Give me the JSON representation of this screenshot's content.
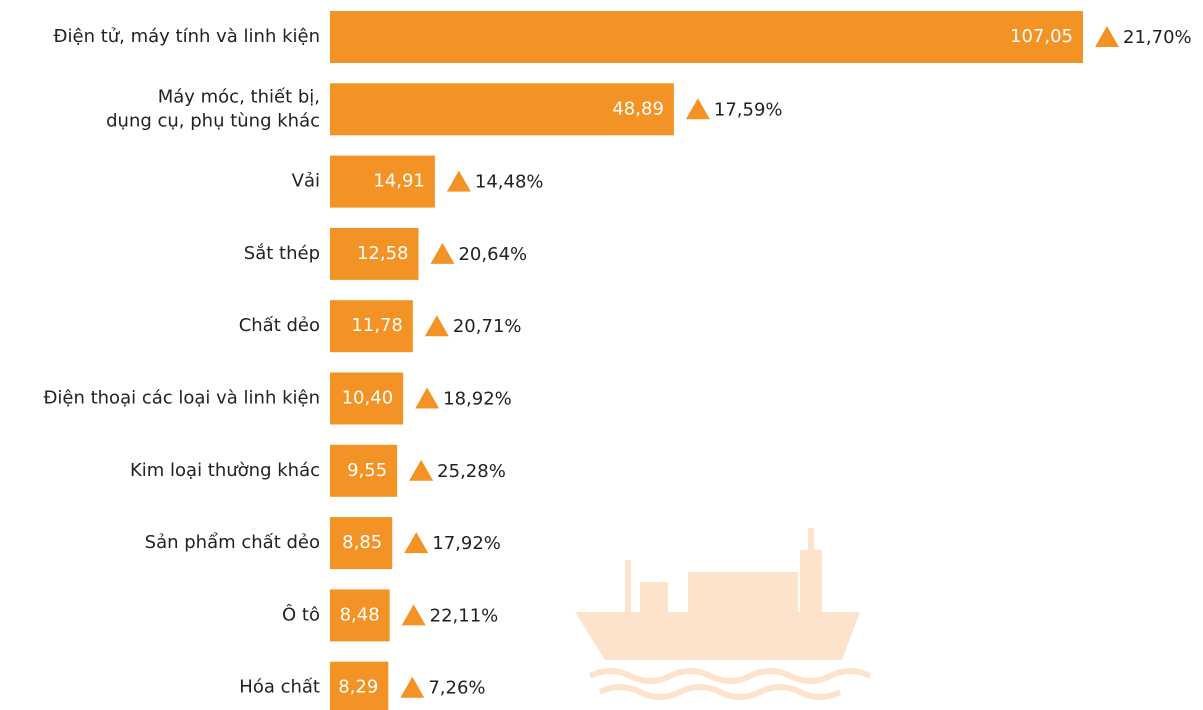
{
  "chart_data": {
    "type": "bar",
    "orientation": "horizontal",
    "color": "#f39325",
    "categories": [
      "Điện tử, máy tính và linh kiện",
      "Máy móc, thiết bị,\ndụng cụ, phụ tùng khác",
      "Vải",
      "Sắt thép",
      "Chất dẻo",
      "Điện thoại các loại và linh kiện",
      "Kim loại thường khác",
      "Sản phẩm chất dẻo",
      "Ô tô",
      "Hóa chất"
    ],
    "values": [
      107.05,
      48.89,
      14.91,
      12.58,
      11.78,
      10.4,
      9.55,
      8.85,
      8.48,
      8.29
    ],
    "value_labels": [
      "107,05",
      "48,89",
      "14,91",
      "12,58",
      "11,78",
      "10,40",
      "9,55",
      "8,85",
      "8,48",
      "8,29"
    ],
    "changes": [
      21.7,
      17.59,
      14.48,
      20.64,
      20.71,
      18.92,
      25.28,
      17.92,
      22.11,
      7.26
    ],
    "change_labels": [
      "21,70%",
      "17,59%",
      "14,48%",
      "20,64%",
      "20,71%",
      "18,92%",
      "25,28%",
      "17,92%",
      "22,11%",
      "7,26%"
    ]
  }
}
